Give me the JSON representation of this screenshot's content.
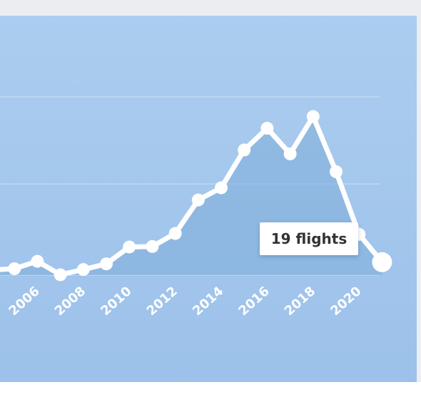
{
  "chart_data": {
    "type": "area",
    "x": [
      2004,
      2005,
      2006,
      2007,
      2008,
      2009,
      2010,
      2011,
      2012,
      2013,
      2014,
      2015,
      2016,
      2017,
      2018,
      2019,
      2020,
      2021
    ],
    "values": [
      0.2,
      0.5,
      2.2,
      -0.9,
      0.3,
      1.6,
      5.5,
      5.6,
      8.6,
      16.3,
      19.1,
      27.8,
      32.8,
      26.9,
      35.5,
      22.8,
      8.4,
      2.0
    ],
    "xticks": [
      "2006",
      "2008",
      "2010",
      "2012",
      "2014",
      "2016",
      "2018",
      "2020"
    ],
    "ylim": [
      0,
      40
    ],
    "grid": true,
    "colors": {
      "line": "#ffffff",
      "area": "#7dadd9",
      "background": "#abcdef",
      "gridline": "#c6dcf2"
    }
  },
  "tooltip": {
    "text": "19 flights"
  }
}
